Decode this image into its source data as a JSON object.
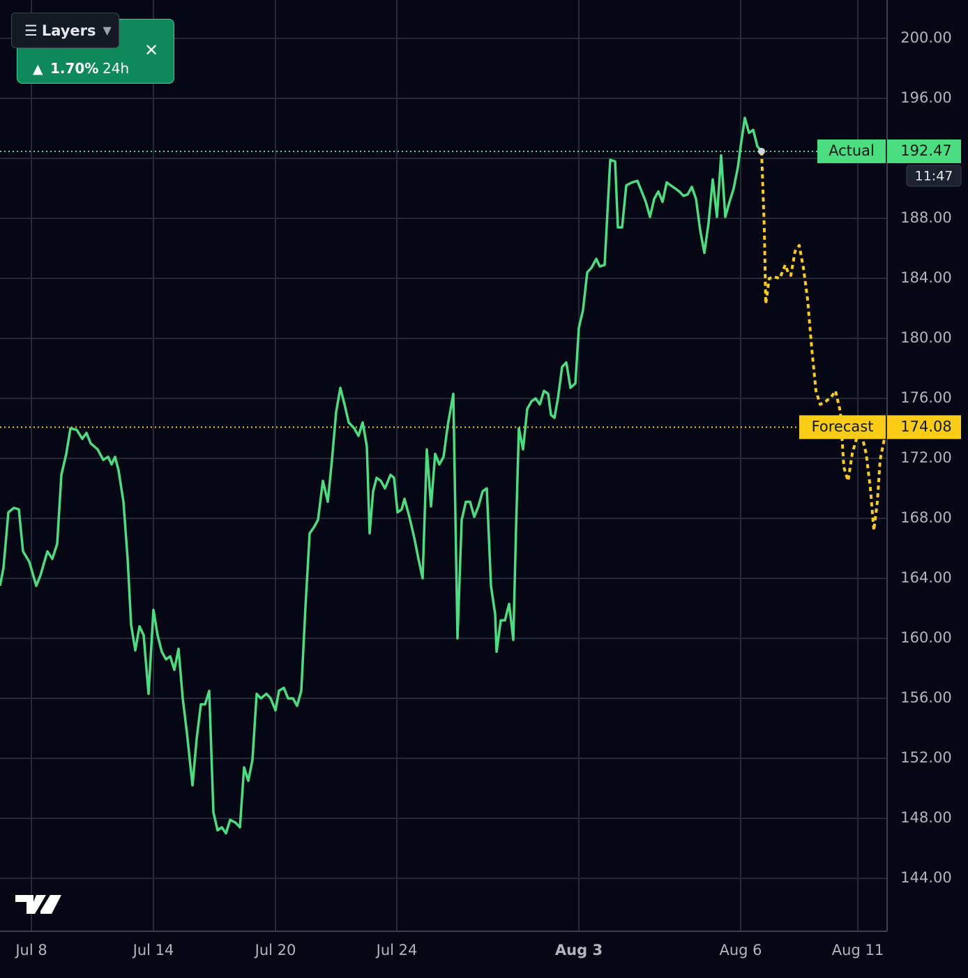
{
  "chart_data": {
    "type": "line",
    "xlim": [
      0,
      1272
    ],
    "ylim": [
      140.47,
      202.56
    ],
    "grid": true,
    "xticks": [
      {
        "value": 45,
        "label": "Jul 8"
      },
      {
        "value": 220,
        "label": "Jul 14"
      },
      {
        "value": 395,
        "label": "Jul 20"
      },
      {
        "value": 569,
        "label": "Jul 24"
      },
      {
        "value": 830,
        "label": "Aug 3",
        "bold": true
      },
      {
        "value": 1062,
        "label": "Aug 6"
      },
      {
        "value": 1230,
        "label": "Aug 11"
      }
    ],
    "yticks": [
      {
        "value": 144,
        "label": "144.00"
      },
      {
        "value": 148,
        "label": "148.00"
      },
      {
        "value": 152,
        "label": "152.00"
      },
      {
        "value": 156,
        "label": "156.00"
      },
      {
        "value": 160,
        "label": "160.00"
      },
      {
        "value": 164,
        "label": "164.00"
      },
      {
        "value": 168,
        "label": "168.00"
      },
      {
        "value": 172,
        "label": "172.00"
      },
      {
        "value": 176,
        "label": "176.00"
      },
      {
        "value": 180,
        "label": "180.00"
      },
      {
        "value": 184,
        "label": "184.00"
      },
      {
        "value": 188,
        "label": "188.00"
      },
      {
        "value": 192,
        "label": "192.00"
      },
      {
        "value": 196,
        "label": "196.00"
      },
      {
        "value": 200,
        "label": "200.00"
      }
    ],
    "series": [
      {
        "color": "#4ade80",
        "dashed": false,
        "x": [
          0,
          5,
          12,
          20,
          27,
          33,
          42,
          52,
          58,
          68,
          75,
          82,
          88,
          95,
          101,
          110,
          118,
          124,
          130,
          140,
          148,
          155,
          160,
          165,
          170,
          177,
          183,
          188,
          194,
          200,
          206,
          213,
          220,
          226,
          232,
          238,
          244,
          250,
          256,
          262,
          268,
          276,
          282,
          288,
          294,
          300,
          306,
          312,
          318,
          324,
          330,
          338,
          344,
          350,
          356,
          362,
          368,
          374,
          382,
          388,
          395,
          400,
          407,
          413,
          420,
          426,
          432,
          438,
          444,
          450,
          456,
          463,
          470,
          476,
          482,
          488,
          494,
          500,
          508,
          514,
          520,
          526,
          530,
          535,
          540,
          546,
          552,
          560,
          565,
          570,
          576,
          580,
          587,
          594,
          600,
          606,
          612,
          618,
          624,
          630,
          636,
          642,
          650,
          656,
          662,
          668,
          674,
          680,
          686,
          692,
          698,
          704,
          710,
          712,
          718,
          724,
          730,
          736,
          740,
          744,
          750,
          756,
          762,
          768,
          774,
          780,
          786,
          790,
          795,
          800,
          806,
          812,
          818,
          825,
          830,
          836,
          842,
          848,
          855,
          860,
          867,
          875,
          882,
          886,
          892,
          898,
          906,
          914,
          920,
          926,
          932,
          938,
          944,
          950,
          956,
          962,
          968,
          974,
          980,
          986,
          992,
          998,
          1004,
          1010,
          1016,
          1022,
          1028,
          1034,
          1040,
          1046,
          1052,
          1058,
          1062,
          1068,
          1074,
          1080,
          1086,
          1092
        ],
        "values": [
          163.5,
          164.7,
          168.4,
          168.7,
          168.6,
          165.8,
          165.1,
          163.5,
          164.2,
          165.8,
          165.3,
          166.3,
          170.9,
          172.3,
          174.0,
          173.9,
          173.3,
          173.7,
          173.0,
          172.6,
          171.9,
          172.1,
          171.6,
          172.1,
          171.2,
          169.1,
          165.3,
          160.9,
          159.2,
          160.8,
          160.2,
          156.3,
          161.9,
          160.2,
          159.1,
          158.6,
          158.8,
          157.9,
          159.3,
          156.0,
          153.7,
          150.2,
          153.3,
          155.6,
          155.6,
          156.5,
          148.4,
          147.2,
          147.4,
          147.0,
          147.9,
          147.7,
          147.4,
          151.4,
          150.5,
          151.9,
          156.3,
          156.0,
          156.3,
          156.0,
          155.2,
          156.5,
          156.7,
          156.0,
          156.0,
          155.5,
          156.5,
          162.1,
          167.0,
          167.4,
          167.9,
          170.5,
          169.1,
          171.9,
          175.1,
          176.7,
          175.6,
          174.4,
          174.0,
          173.5,
          174.4,
          172.8,
          167.0,
          169.8,
          170.7,
          170.5,
          170.0,
          170.9,
          170.7,
          168.4,
          168.6,
          169.3,
          168.1,
          166.7,
          165.3,
          164.0,
          172.6,
          168.8,
          172.3,
          171.6,
          172.1,
          174.2,
          176.3,
          160.0,
          167.9,
          169.1,
          169.1,
          168.1,
          168.8,
          169.8,
          170.0,
          163.5,
          161.6,
          159.1,
          161.2,
          161.2,
          162.3,
          159.9,
          167.4,
          174.0,
          172.6,
          175.3,
          175.8,
          176.0,
          175.6,
          176.5,
          176.3,
          174.9,
          174.7,
          176.0,
          178.1,
          178.4,
          176.7,
          177.0,
          180.7,
          181.9,
          184.4,
          184.7,
          185.3,
          184.8,
          184.9,
          191.9,
          191.8,
          187.4,
          187.4,
          190.2,
          190.4,
          190.5,
          189.8,
          189.1,
          188.1,
          189.3,
          189.8,
          189.1,
          190.4,
          190.2,
          190.0,
          189.8,
          189.5,
          189.6,
          190.1,
          189.3,
          187.2,
          185.7,
          187.7,
          190.6,
          188.1,
          192.2,
          188.1,
          189.1,
          190.0,
          191.4,
          192.8,
          194.7,
          193.7,
          193.9,
          192.8,
          192.47
        ]
      },
      {
        "color": "#facc15",
        "dashed": true,
        "x": [
          1092,
          1096,
          1098,
          1103,
          1110,
          1118,
          1126,
          1130,
          1134,
          1140,
          1146,
          1152,
          1158,
          1164,
          1170,
          1176,
          1184,
          1192,
          1198,
          1205,
          1210,
          1216,
          1222,
          1228,
          1236,
          1242,
          1248,
          1253,
          1258,
          1262,
          1268
        ],
        "values": [
          192.47,
          187.2,
          182.3,
          184.0,
          184.1,
          184.0,
          184.9,
          184.4,
          184.2,
          185.8,
          186.2,
          184.7,
          182.6,
          179.3,
          176.5,
          175.6,
          175.8,
          176.1,
          176.5,
          175.1,
          171.4,
          170.5,
          172.3,
          173.3,
          173.5,
          172.3,
          170.0,
          167.2,
          169.1,
          171.9,
          173.3
        ]
      }
    ],
    "reference_lines": [
      {
        "name": "Actual",
        "value": 192.47,
        "color": "#4ade80",
        "countdown": "11:47"
      },
      {
        "name": "Forecast",
        "value": 174.08,
        "color": "#facc15"
      }
    ]
  },
  "widget": {
    "button": "Layers",
    "change": "1.70%",
    "period": "24h"
  }
}
